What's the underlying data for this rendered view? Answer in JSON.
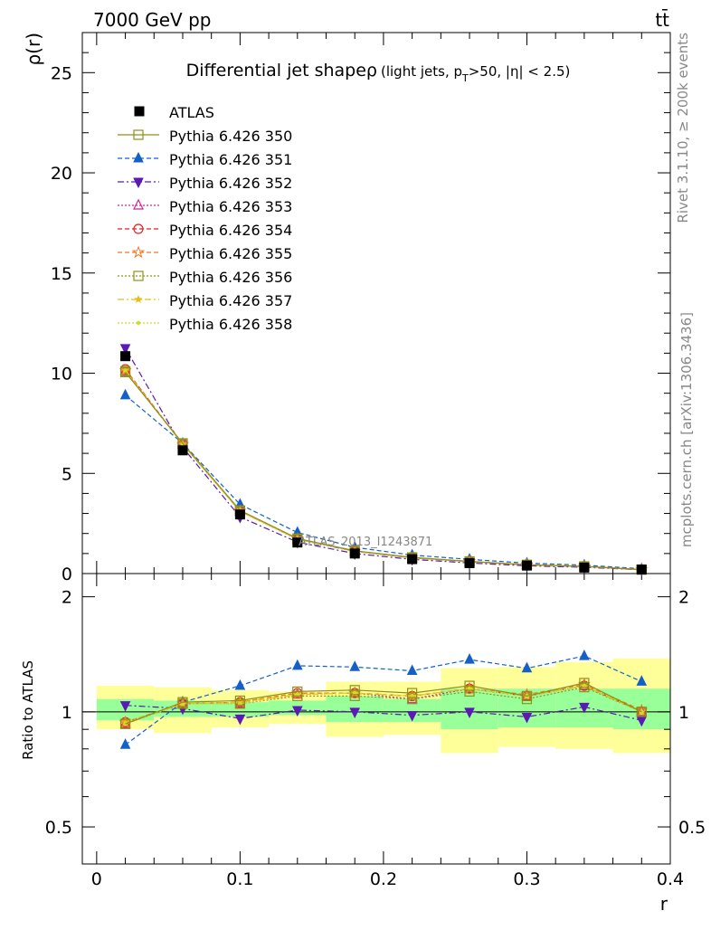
{
  "header": {
    "left": "7000 GeV pp",
    "right": "tt̄"
  },
  "side_text": {
    "rivet": "Rivet 3.1.10, ≥ 200k events",
    "mcplots": "mcplots.cern.ch [arXiv:1306.3436]"
  },
  "watermark": "ATLAS_2013_I1243871",
  "colors": {
    "band_inner": "#99ff99",
    "band_outer": "#ffff99",
    "data": "#000000"
  },
  "chart_data": [
    {
      "type": "line",
      "title_main": "Differential jet shape",
      "title_rho": "ρ",
      "title_paren_a": "(light jets, p",
      "title_sub": "T",
      "title_paren_b": ">50, |η| < 2.5)",
      "ylabel": "ρ(r)",
      "xlim": [
        -0.01,
        0.4
      ],
      "ylim": [
        0,
        27
      ],
      "yticks": [
        0,
        5,
        10,
        15,
        20,
        25
      ],
      "x": [
        0.02,
        0.06,
        0.1,
        0.14,
        0.18,
        0.22,
        0.26,
        0.3,
        0.34,
        0.38
      ],
      "data": {
        "name": "ATLAS",
        "values": [
          10.85,
          6.15,
          2.95,
          1.55,
          1.0,
          0.72,
          0.52,
          0.4,
          0.3,
          0.2
        ]
      },
      "series": [
        {
          "name": "Pythia 6.426 350",
          "color": "#8f8f1a",
          "dash": "",
          "marker": "square-open",
          "values": [
            10.05,
            6.5,
            3.15,
            1.75,
            1.14,
            0.81,
            0.61,
            0.44,
            0.36,
            0.2
          ]
        },
        {
          "name": "Pythia 6.426 351",
          "color": "#1460c8",
          "dash": "5,3",
          "marker": "triangle-up",
          "values": [
            8.9,
            6.5,
            3.45,
            2.05,
            1.31,
            0.92,
            0.71,
            0.52,
            0.42,
            0.24
          ]
        },
        {
          "name": "Pythia 6.426 352",
          "color": "#5a1ab4",
          "dash": "7,3,2,3",
          "marker": "triangle-down",
          "values": [
            11.25,
            6.3,
            2.82,
            1.57,
            1.0,
            0.71,
            0.53,
            0.39,
            0.31,
            0.19
          ]
        },
        {
          "name": "Pythia 6.426 353",
          "color": "#c82896",
          "dash": "2,2",
          "marker": "triangle-open",
          "values": [
            10.1,
            6.45,
            3.1,
            1.72,
            1.12,
            0.78,
            0.6,
            0.44,
            0.35,
            0.2
          ]
        },
        {
          "name": "Pythia 6.426 354",
          "color": "#e61e28",
          "dash": "5,3",
          "marker": "circle-open",
          "values": [
            10.2,
            6.45,
            3.12,
            1.74,
            1.12,
            0.79,
            0.6,
            0.44,
            0.35,
            0.2
          ]
        },
        {
          "name": "Pythia 6.426 355",
          "color": "#f07828",
          "dash": "5,3",
          "marker": "star-open",
          "values": [
            10.15,
            6.45,
            3.12,
            1.73,
            1.12,
            0.79,
            0.6,
            0.45,
            0.36,
            0.2
          ]
        },
        {
          "name": "Pythia 6.426 356",
          "color": "#8c9614",
          "dash": "2,2",
          "marker": "square-open",
          "values": [
            10.1,
            6.45,
            3.1,
            1.7,
            1.1,
            0.78,
            0.59,
            0.43,
            0.35,
            0.2
          ]
        },
        {
          "name": "Pythia 6.426 357",
          "color": "#e6be14",
          "dash": "7,3,2,3",
          "marker": "star-small",
          "values": [
            10.15,
            6.45,
            3.12,
            1.72,
            1.12,
            0.79,
            0.6,
            0.44,
            0.35,
            0.2
          ]
        },
        {
          "name": "Pythia 6.426 358",
          "color": "#d2dc28",
          "dash": "2,2",
          "marker": "dot",
          "values": [
            10.1,
            6.45,
            3.1,
            1.72,
            1.12,
            0.79,
            0.6,
            0.44,
            0.35,
            0.2
          ]
        }
      ]
    },
    {
      "type": "line",
      "ylabel": "Ratio to ATLAS",
      "xlabel": "r",
      "xlim": [
        -0.01,
        0.4
      ],
      "ylim": [
        0.4,
        2.3
      ],
      "yticks": [
        0.5,
        1,
        2
      ],
      "ytick_labels": [
        "0.5",
        "1",
        "2"
      ],
      "xticks": [
        0,
        0.1,
        0.2,
        0.3,
        0.4
      ],
      "xtick_labels": [
        "0",
        "0.1",
        "0.2",
        "0.3",
        "0.4"
      ],
      "x": [
        0.02,
        0.06,
        0.1,
        0.14,
        0.18,
        0.22,
        0.26,
        0.3,
        0.34,
        0.38
      ],
      "bin_edges": [
        0.0,
        0.04,
        0.08,
        0.12,
        0.16,
        0.2,
        0.24,
        0.28,
        0.32,
        0.36,
        0.4
      ],
      "band_inner": {
        "low": [
          0.95,
          0.97,
          0.97,
          0.98,
          0.94,
          0.94,
          0.9,
          0.91,
          0.91,
          0.9
        ],
        "high": [
          1.08,
          1.07,
          1.06,
          1.07,
          1.1,
          1.08,
          1.15,
          1.15,
          1.15,
          1.15
        ]
      },
      "band_outer": {
        "low": [
          0.9,
          0.88,
          0.91,
          0.93,
          0.86,
          0.87,
          0.78,
          0.81,
          0.8,
          0.78
        ],
        "high": [
          1.17,
          1.16,
          1.14,
          1.13,
          1.2,
          1.2,
          1.3,
          1.31,
          1.35,
          1.38
        ]
      },
      "series": [
        {
          "name": "Pythia 6.426 350",
          "values": [
            0.93,
            1.06,
            1.07,
            1.13,
            1.14,
            1.12,
            1.17,
            1.1,
            1.19,
            1.0
          ]
        },
        {
          "name": "Pythia 6.426 351",
          "values": [
            0.82,
            1.06,
            1.17,
            1.32,
            1.31,
            1.28,
            1.37,
            1.3,
            1.4,
            1.2
          ]
        },
        {
          "name": "Pythia 6.426 352",
          "values": [
            1.04,
            1.02,
            0.96,
            1.01,
            1.0,
            0.98,
            1.0,
            0.97,
            1.03,
            0.95
          ]
        },
        {
          "name": "Pythia 6.426 353",
          "values": [
            0.93,
            1.05,
            1.05,
            1.11,
            1.12,
            1.08,
            1.15,
            1.1,
            1.17,
            1.0
          ]
        },
        {
          "name": "Pythia 6.426 354",
          "values": [
            0.94,
            1.05,
            1.06,
            1.12,
            1.12,
            1.1,
            1.15,
            1.1,
            1.17,
            1.0
          ]
        },
        {
          "name": "Pythia 6.426 355",
          "values": [
            0.94,
            1.05,
            1.06,
            1.12,
            1.12,
            1.1,
            1.15,
            1.11,
            1.18,
            1.01
          ]
        },
        {
          "name": "Pythia 6.426 356",
          "values": [
            0.93,
            1.05,
            1.05,
            1.1,
            1.1,
            1.08,
            1.13,
            1.08,
            1.16,
            1.0
          ]
        },
        {
          "name": "Pythia 6.426 357",
          "values": [
            0.94,
            1.05,
            1.06,
            1.11,
            1.12,
            1.1,
            1.15,
            1.1,
            1.17,
            1.0
          ]
        },
        {
          "name": "Pythia 6.426 358",
          "values": [
            0.93,
            1.05,
            1.05,
            1.11,
            1.12,
            1.1,
            1.15,
            1.1,
            1.17,
            1.0
          ]
        }
      ]
    }
  ]
}
